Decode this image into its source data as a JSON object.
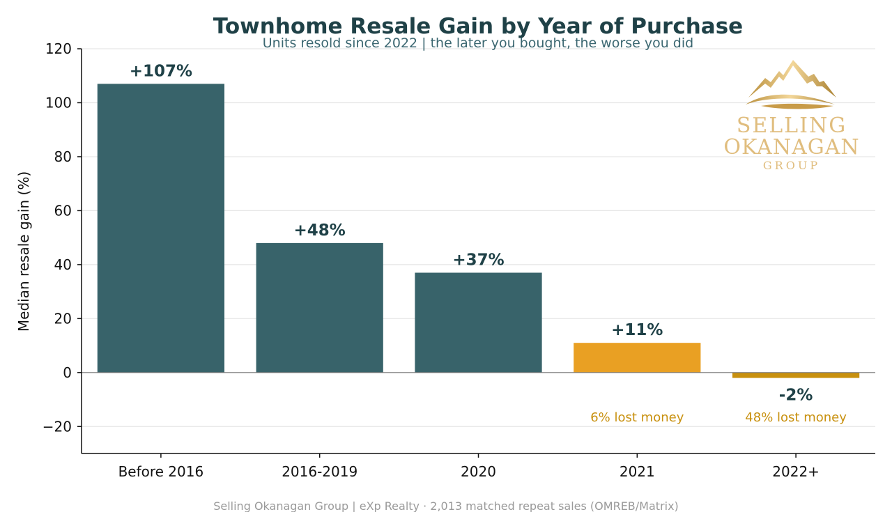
{
  "chart_data": {
    "type": "bar",
    "title": "Townhome Resale Gain by Year of Purchase",
    "subtitle": "Units resold since 2022  |  the later you bought, the worse you did",
    "ylabel": "Median resale gain (%)",
    "xlabel": "",
    "ylim": [
      -30,
      120
    ],
    "yticks": [
      -20,
      0,
      20,
      40,
      60,
      80,
      100,
      120
    ],
    "ytick_labels": [
      "−20",
      "0",
      "20",
      "40",
      "60",
      "80",
      "100",
      "120"
    ],
    "grid": "horizontal",
    "categories": [
      "Before 2016",
      "2016-2019",
      "2020",
      "2021",
      "2022+"
    ],
    "values": [
      107,
      48,
      37,
      11,
      -2
    ],
    "data_labels": [
      "+107%",
      "+48%",
      "+37%",
      "+11%",
      "-2%"
    ],
    "bar_colors": [
      "#38636a",
      "#38636a",
      "#38636a",
      "#e9a023",
      "#c8900e"
    ],
    "annotations": [
      {
        "category": "2021",
        "text": "6% lost money"
      },
      {
        "category": "2022+",
        "text": "48% lost money"
      }
    ]
  },
  "logo": {
    "line1": "SELLING",
    "line2": "OKANAGAN",
    "line3": "GROUP"
  },
  "footer": "Selling Okanagan Group  |  eXp Realty   ·   2,013 matched repeat sales (OMREB/Matrix)",
  "colors": {
    "primary": "#38636a",
    "highlight": "#e9a023",
    "negative": "#c8900e",
    "title": "#1f4147",
    "gold": "#d9b36b"
  }
}
